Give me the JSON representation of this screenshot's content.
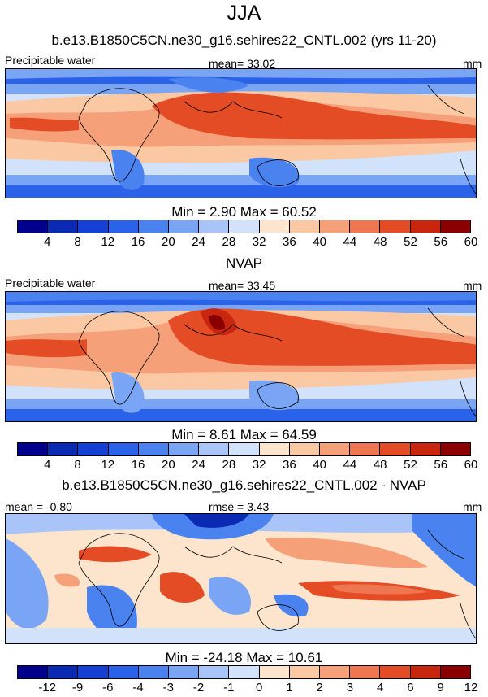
{
  "title": "JJA",
  "panels": [
    {
      "heading": "b.e13.B1850C5CN.ne30_g16.sehires22_CNTL.002 (yrs 11-20)",
      "left_label": "Precipitable water",
      "center_label": "mean=  33.02",
      "right_label": "mm",
      "minmax": "Min =   2.90 Max =  60.52",
      "ticks": [
        "4",
        "8",
        "12",
        "16",
        "20",
        "24",
        "28",
        "32",
        "36",
        "40",
        "44",
        "48",
        "52",
        "56",
        "60"
      ],
      "colors": [
        "#00008c",
        "#0a2ab4",
        "#1640d4",
        "#2a62ea",
        "#4a82f0",
        "#7aa4f4",
        "#a8c4f8",
        "#d2e2fb",
        "#fde4cc",
        "#fbc8a4",
        "#f6a07a",
        "#ee7650",
        "#e44c26",
        "#c8260f",
        "#8a0000"
      ]
    },
    {
      "heading": "NVAP",
      "left_label": "Precipitable water",
      "center_label": "mean=  33.45",
      "right_label": "mm",
      "minmax": "Min =   8.61 Max =  64.59",
      "ticks": [
        "4",
        "8",
        "12",
        "16",
        "20",
        "24",
        "28",
        "32",
        "36",
        "40",
        "44",
        "48",
        "52",
        "56",
        "60"
      ],
      "colors": [
        "#00008c",
        "#0a2ab4",
        "#1640d4",
        "#2a62ea",
        "#4a82f0",
        "#7aa4f4",
        "#a8c4f8",
        "#d2e2fb",
        "#fde4cc",
        "#fbc8a4",
        "#f6a07a",
        "#ee7650",
        "#e44c26",
        "#c8260f",
        "#8a0000"
      ]
    },
    {
      "heading": "b.e13.B1850C5CN.ne30_g16.sehires22_CNTL.002 - NVAP",
      "left_label": "mean =  -0.80",
      "center_label": "rmse =   3.43",
      "right_label": "mm",
      "minmax": "Min = -24.18 Max =  10.61",
      "ticks": [
        "-12",
        "-9",
        "-6",
        "-4",
        "-3",
        "-2",
        "-1",
        "0",
        "1",
        "2",
        "3",
        "4",
        "6",
        "9",
        "12"
      ],
      "colors": [
        "#00008c",
        "#0a2ab4",
        "#1640d4",
        "#2a62ea",
        "#4a82f0",
        "#7aa4f4",
        "#a8c4f8",
        "#d2e2fb",
        "#fde4cc",
        "#fbc8a4",
        "#f6a07a",
        "#ee7650",
        "#e44c26",
        "#c8260f",
        "#8a0000"
      ]
    }
  ]
}
